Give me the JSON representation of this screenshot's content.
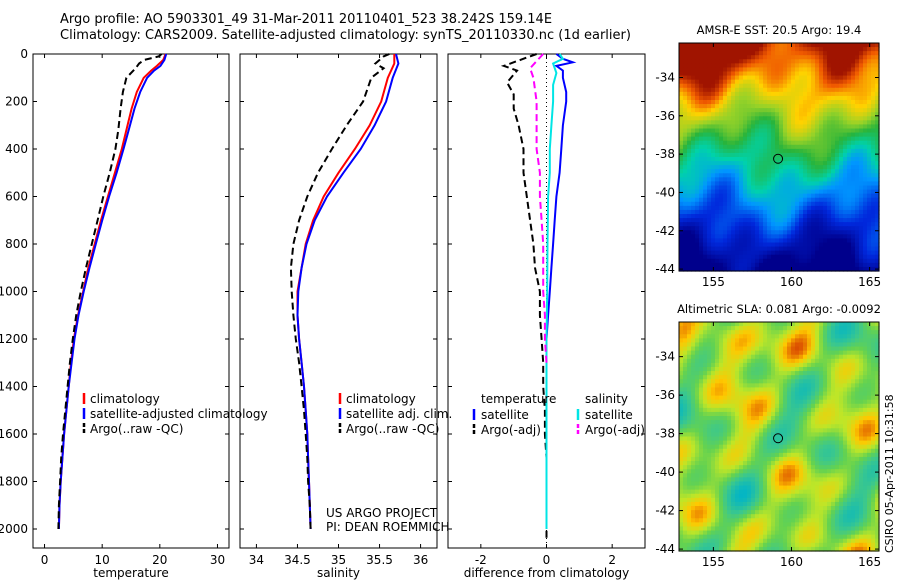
{
  "header": {
    "line1": "Argo profile: AO 5903301_49 31-Mar-2011 20110401_523 38.242S 159.14E",
    "line2": "Climatology: CARS2009. Satellite-adjusted climatology: synTS_20110330.nc (1d earlier)"
  },
  "side_label": "CSIRO 05-Apr-2011 10:31:58",
  "credit": {
    "line1": "US ARGO PROJECT",
    "line2": "PI: DEAN ROEMMICH"
  },
  "colors": {
    "climatology": "#ff0000",
    "satellite": "#0000ff",
    "argo": "#000000",
    "diff_sat_salinity": "#00e5e5",
    "diff_argo_salinity": "#ff00ff"
  },
  "chart_data": [
    {
      "type": "line",
      "xlabel": "temperature",
      "xlim": [
        -2,
        32
      ],
      "ylim": [
        0,
        2080
      ],
      "y_reversed": true,
      "xticks": [
        0,
        10,
        20,
        30
      ],
      "yticks": [
        0,
        200,
        400,
        600,
        800,
        1000,
        1200,
        1400,
        1600,
        1800,
        2000
      ],
      "legend": {
        "placement": "lower-right",
        "entries": [
          "climatology",
          "satellite-adjusted climatology",
          "Argo(..raw -QC)"
        ]
      },
      "series": [
        {
          "name": "climatology",
          "color": "#ff0000",
          "dash": "solid",
          "points": [
            [
              21,
              0
            ],
            [
              20.6,
              25
            ],
            [
              19.5,
              50
            ],
            [
              18.5,
              70
            ],
            [
              17.2,
              100
            ],
            [
              16,
              160
            ],
            [
              15.1,
              230
            ],
            [
              14.2,
              320
            ],
            [
              13.4,
              400
            ],
            [
              12.2,
              500
            ],
            [
              11,
              600
            ],
            [
              9.8,
              700
            ],
            [
              8.7,
              800
            ],
            [
              7.6,
              900
            ],
            [
              6.7,
              1000
            ],
            [
              5.8,
              1100
            ],
            [
              5.1,
              1200
            ],
            [
              4.6,
              1300
            ],
            [
              4.2,
              1400
            ],
            [
              3.8,
              1500
            ],
            [
              3.4,
              1600
            ],
            [
              3.1,
              1700
            ],
            [
              2.8,
              1800
            ],
            [
              2.6,
              1900
            ],
            [
              2.5,
              2000
            ]
          ]
        },
        {
          "name": "satellite-adjusted climatology",
          "color": "#0000ff",
          "dash": "solid",
          "points": [
            [
              21.1,
              0
            ],
            [
              20.8,
              25
            ],
            [
              20.1,
              50
            ],
            [
              19,
              70
            ],
            [
              17.8,
              100
            ],
            [
              16.6,
              160
            ],
            [
              15.6,
              230
            ],
            [
              14.6,
              320
            ],
            [
              13.7,
              400
            ],
            [
              12.5,
              500
            ],
            [
              11.2,
              600
            ],
            [
              10,
              700
            ],
            [
              8.9,
              800
            ],
            [
              7.8,
              900
            ],
            [
              6.8,
              1000
            ],
            [
              5.9,
              1100
            ],
            [
              5.2,
              1200
            ],
            [
              4.7,
              1300
            ],
            [
              4.2,
              1400
            ],
            [
              3.8,
              1500
            ],
            [
              3.4,
              1600
            ],
            [
              3.1,
              1700
            ],
            [
              2.8,
              1800
            ],
            [
              2.6,
              1900
            ],
            [
              2.5,
              2000
            ]
          ]
        },
        {
          "name": "Argo(..raw -QC)",
          "color": "#000000",
          "dash": "dashed",
          "points": [
            [
              20.3,
              0
            ],
            [
              19.8,
              10
            ],
            [
              17.3,
              25
            ],
            [
              16.4,
              40
            ],
            [
              15.8,
              60
            ],
            [
              14.2,
              100
            ],
            [
              13.6,
              160
            ],
            [
              13.2,
              230
            ],
            [
              12.8,
              320
            ],
            [
              12.3,
              400
            ],
            [
              11.3,
              500
            ],
            [
              10.2,
              600
            ],
            [
              9.2,
              700
            ],
            [
              8.2,
              800
            ],
            [
              7.2,
              900
            ],
            [
              6.3,
              1000
            ],
            [
              5.5,
              1100
            ],
            [
              4.9,
              1200
            ],
            [
              4.4,
              1300
            ],
            [
              4,
              1400
            ],
            [
              3.6,
              1500
            ],
            [
              3.2,
              1600
            ],
            [
              2.9,
              1700
            ],
            [
              2.7,
              1800
            ],
            [
              2.5,
              1900
            ],
            [
              2.4,
              2000
            ]
          ]
        }
      ]
    },
    {
      "type": "line",
      "xlabel": "salinity",
      "xlim": [
        33.8,
        36.2
      ],
      "ylim": [
        0,
        2080
      ],
      "y_reversed": true,
      "xticks": [
        34,
        34.5,
        35,
        35.5,
        36
      ],
      "yticks": [
        0,
        200,
        400,
        600,
        800,
        1000,
        1200,
        1400,
        1600,
        1800,
        2000
      ],
      "legend": {
        "placement": "lower-right",
        "entries": [
          "climatology",
          "satellite adj. clim.",
          "Argo(..raw -QC)"
        ]
      },
      "series": [
        {
          "name": "climatology",
          "color": "#ff0000",
          "dash": "solid",
          "points": [
            [
              35.68,
              0
            ],
            [
              35.68,
              40
            ],
            [
              35.6,
              100
            ],
            [
              35.52,
              200
            ],
            [
              35.38,
              300
            ],
            [
              35.2,
              400
            ],
            [
              35,
              500
            ],
            [
              34.82,
              600
            ],
            [
              34.69,
              700
            ],
            [
              34.6,
              800
            ],
            [
              34.55,
              900
            ],
            [
              34.5,
              1000
            ],
            [
              34.5,
              1100
            ],
            [
              34.52,
              1200
            ],
            [
              34.55,
              1300
            ],
            [
              34.58,
              1400
            ],
            [
              34.6,
              1500
            ],
            [
              34.62,
              1600
            ],
            [
              34.63,
              1700
            ],
            [
              34.64,
              1800
            ],
            [
              34.65,
              1900
            ],
            [
              34.66,
              2000
            ]
          ]
        },
        {
          "name": "satellite adj. clim.",
          "color": "#0000ff",
          "dash": "solid",
          "points": [
            [
              35.7,
              0
            ],
            [
              35.73,
              40
            ],
            [
              35.66,
              100
            ],
            [
              35.58,
              200
            ],
            [
              35.44,
              300
            ],
            [
              35.27,
              400
            ],
            [
              35.06,
              500
            ],
            [
              34.86,
              600
            ],
            [
              34.71,
              700
            ],
            [
              34.61,
              800
            ],
            [
              34.55,
              900
            ],
            [
              34.51,
              1000
            ],
            [
              34.5,
              1100
            ],
            [
              34.52,
              1200
            ],
            [
              34.55,
              1300
            ],
            [
              34.58,
              1400
            ],
            [
              34.6,
              1500
            ],
            [
              34.62,
              1600
            ],
            [
              34.63,
              1700
            ],
            [
              34.64,
              1800
            ],
            [
              34.65,
              1900
            ],
            [
              34.66,
              2000
            ]
          ]
        },
        {
          "name": "Argo(..raw -QC)",
          "color": "#000000",
          "dash": "dashed",
          "points": [
            [
              35.62,
              0
            ],
            [
              35.55,
              10
            ],
            [
              35.45,
              40
            ],
            [
              35.55,
              60
            ],
            [
              35.4,
              100
            ],
            [
              35.3,
              200
            ],
            [
              35.1,
              300
            ],
            [
              34.92,
              400
            ],
            [
              34.75,
              500
            ],
            [
              34.62,
              600
            ],
            [
              34.52,
              700
            ],
            [
              34.45,
              800
            ],
            [
              34.42,
              900
            ],
            [
              34.43,
              1000
            ],
            [
              34.45,
              1100
            ],
            [
              34.48,
              1200
            ],
            [
              34.52,
              1300
            ],
            [
              34.55,
              1400
            ],
            [
              34.58,
              1500
            ],
            [
              34.6,
              1600
            ],
            [
              34.62,
              1700
            ],
            [
              34.63,
              1800
            ],
            [
              34.65,
              1900
            ],
            [
              34.66,
              2000
            ]
          ]
        }
      ]
    },
    {
      "type": "line",
      "xlabel": "difference from climatology",
      "xlim": [
        -3,
        3
      ],
      "ylim": [
        0,
        2080
      ],
      "y_reversed": true,
      "xticks": [
        -2,
        0,
        2
      ],
      "yticks": [
        0,
        200,
        400,
        600,
        800,
        1000,
        1200,
        1400,
        1600,
        1800,
        2000
      ],
      "legend": {
        "placement": "lower-center",
        "columns": [
          {
            "heading": "temperature",
            "entries": [
              "satellite",
              "Argo(-adj)"
            ]
          },
          {
            "heading": "salinity",
            "entries": [
              "satellite",
              "Argo(-adj)"
            ]
          }
        ]
      },
      "series": [
        {
          "name": "satellite",
          "group": "temperature",
          "color": "#0000ff",
          "dash": "solid",
          "points": [
            [
              0.3,
              0
            ],
            [
              0.5,
              20
            ],
            [
              0.8,
              35
            ],
            [
              0.3,
              50
            ],
            [
              0.5,
              70
            ],
            [
              0.5,
              100
            ],
            [
              0.6,
              160
            ],
            [
              0.6,
              200
            ],
            [
              0.5,
              300
            ],
            [
              0.45,
              400
            ],
            [
              0.4,
              500
            ],
            [
              0.3,
              600
            ],
            [
              0.25,
              700
            ],
            [
              0.2,
              800
            ],
            [
              0.15,
              900
            ],
            [
              0.1,
              1000
            ],
            [
              0.05,
              1100
            ],
            [
              0,
              1200
            ]
          ]
        },
        {
          "name": "Argo(-adj)",
          "group": "temperature",
          "color": "#000000",
          "dash": "dashed",
          "points": [
            [
              -0.3,
              0
            ],
            [
              -0.9,
              30
            ],
            [
              -1.3,
              50
            ],
            [
              -0.9,
              70
            ],
            [
              -1.2,
              120
            ],
            [
              -1,
              170
            ],
            [
              -1,
              230
            ],
            [
              -0.85,
              300
            ],
            [
              -0.7,
              400
            ],
            [
              -0.7,
              500
            ],
            [
              -0.6,
              600
            ],
            [
              -0.5,
              700
            ],
            [
              -0.4,
              800
            ],
            [
              -0.35,
              900
            ],
            [
              -0.2,
              1000
            ],
            [
              -0.2,
              1100
            ],
            [
              -0.15,
              1200
            ],
            [
              -0.1,
              1300
            ],
            [
              -0.1,
              1400
            ],
            [
              -0.05,
              1500
            ],
            [
              -0.05,
              1600
            ],
            [
              0,
              1700
            ],
            [
              0,
              1800
            ],
            [
              0,
              1900
            ],
            [
              0,
              2050
            ]
          ]
        },
        {
          "name": "satellite",
          "group": "salinity",
          "color": "#00e5e5",
          "dash": "solid",
          "points": [
            [
              0.4,
              0
            ],
            [
              0.5,
              20
            ],
            [
              0.2,
              40
            ],
            [
              0.3,
              80
            ],
            [
              0.2,
              130
            ],
            [
              0.2,
              200
            ],
            [
              0.15,
              300
            ],
            [
              0.1,
              400
            ],
            [
              0.1,
              500
            ],
            [
              0.05,
              600
            ],
            [
              0.03,
              800
            ],
            [
              0.02,
              1000
            ],
            [
              0,
              1200
            ],
            [
              0,
              1600
            ],
            [
              0,
              2000
            ]
          ]
        },
        {
          "name": "Argo(-adj)",
          "group": "salinity",
          "color": "#ff00ff",
          "dash": "dashed",
          "points": [
            [
              -0.1,
              0
            ],
            [
              -0.3,
              30
            ],
            [
              -0.5,
              60
            ],
            [
              -0.4,
              100
            ],
            [
              -0.3,
              200
            ],
            [
              -0.3,
              300
            ],
            [
              -0.3,
              400
            ],
            [
              -0.2,
              500
            ],
            [
              -0.2,
              600
            ],
            [
              -0.15,
              700
            ],
            [
              -0.1,
              800
            ],
            [
              -0.1,
              900
            ],
            [
              -0.1,
              1000
            ],
            [
              -0.05,
              1100
            ],
            [
              -0.05,
              1200
            ],
            [
              0,
              1300
            ]
          ]
        }
      ]
    },
    {
      "type": "heatmap",
      "title": "AMSR-E SST: 20.5 Argo: 19.4",
      "xlim": [
        152.8,
        165.6
      ],
      "ylim": [
        -44.1,
        -32.2
      ],
      "xticks": [
        155,
        160,
        165
      ],
      "yticks": [
        -34,
        -36,
        -38,
        -40,
        -42,
        -44
      ],
      "marker": {
        "lon": 159.14,
        "lat": -38.242
      }
    },
    {
      "type": "heatmap",
      "title": "Altimetric SLA: 0.081 Argo: -0.0092",
      "xlim": [
        152.8,
        165.6
      ],
      "ylim": [
        -44.1,
        -32.2
      ],
      "xticks": [
        155,
        160,
        165
      ],
      "yticks": [
        -34,
        -36,
        -38,
        -40,
        -42,
        -44
      ],
      "marker": {
        "lon": 159.14,
        "lat": -38.242
      }
    }
  ]
}
